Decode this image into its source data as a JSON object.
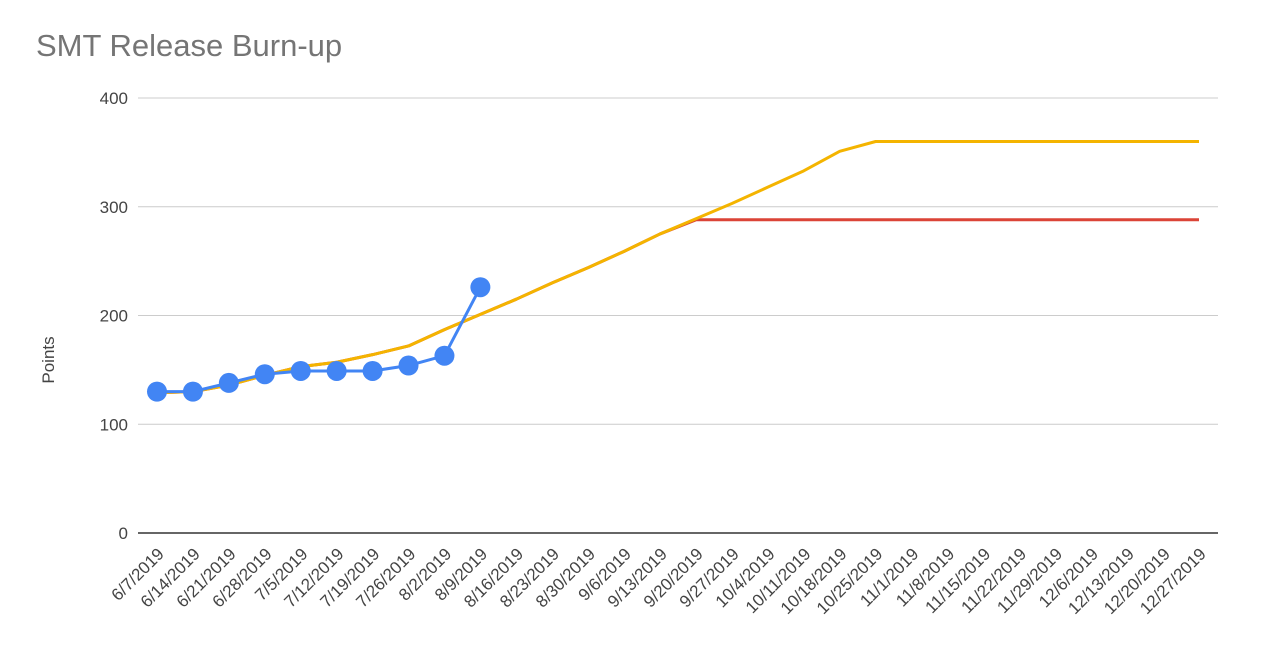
{
  "chart_data": {
    "type": "line",
    "title": "SMT Release Burn-up",
    "y_label": "Points",
    "categories": [
      "6/7/2019",
      "6/14/2019",
      "6/21/2019",
      "6/28/2019",
      "7/5/2019",
      "7/12/2019",
      "7/19/2019",
      "7/26/2019",
      "8/2/2019",
      "8/9/2019",
      "8/16/2019",
      "8/23/2019",
      "8/30/2019",
      "9/6/2019",
      "9/13/2019",
      "9/20/2019",
      "9/27/2019",
      "10/4/2019",
      "10/11/2019",
      "10/18/2019",
      "10/25/2019",
      "11/1/2019",
      "11/8/2019",
      "11/15/2019",
      "11/22/2019",
      "11/29/2019",
      "12/6/2019",
      "12/13/2019",
      "12/20/2019",
      "12/27/2019"
    ],
    "series": [
      {
        "color": "#db4437",
        "markers": false,
        "values": [
          129,
          130,
          136,
          145,
          153,
          157,
          164,
          172,
          187,
          201,
          215,
          230,
          244,
          259,
          275,
          288,
          288,
          288,
          288,
          288,
          288,
          288,
          288,
          288,
          288,
          288,
          288,
          288,
          288,
          288
        ]
      },
      {
        "color": "#f4b400",
        "markers": false,
        "values": [
          129,
          130,
          136,
          145,
          153,
          157,
          164,
          172,
          187,
          201,
          215,
          230,
          244,
          259,
          275,
          289,
          303,
          318,
          333,
          351,
          360,
          360,
          360,
          360,
          360,
          360,
          360,
          360,
          360,
          360
        ]
      },
      {
        "color": "#4285f4",
        "markers": true,
        "values": [
          130,
          130,
          138,
          146,
          149,
          149,
          149,
          154,
          163,
          226,
          null,
          null,
          null,
          null,
          null,
          null,
          null,
          null,
          null,
          null,
          null,
          null,
          null,
          null,
          null,
          null,
          null,
          null,
          null,
          null
        ]
      }
    ],
    "ylim": [
      0,
      400
    ],
    "yticks": [
      0,
      100,
      200,
      300,
      400
    ],
    "grid": true
  }
}
